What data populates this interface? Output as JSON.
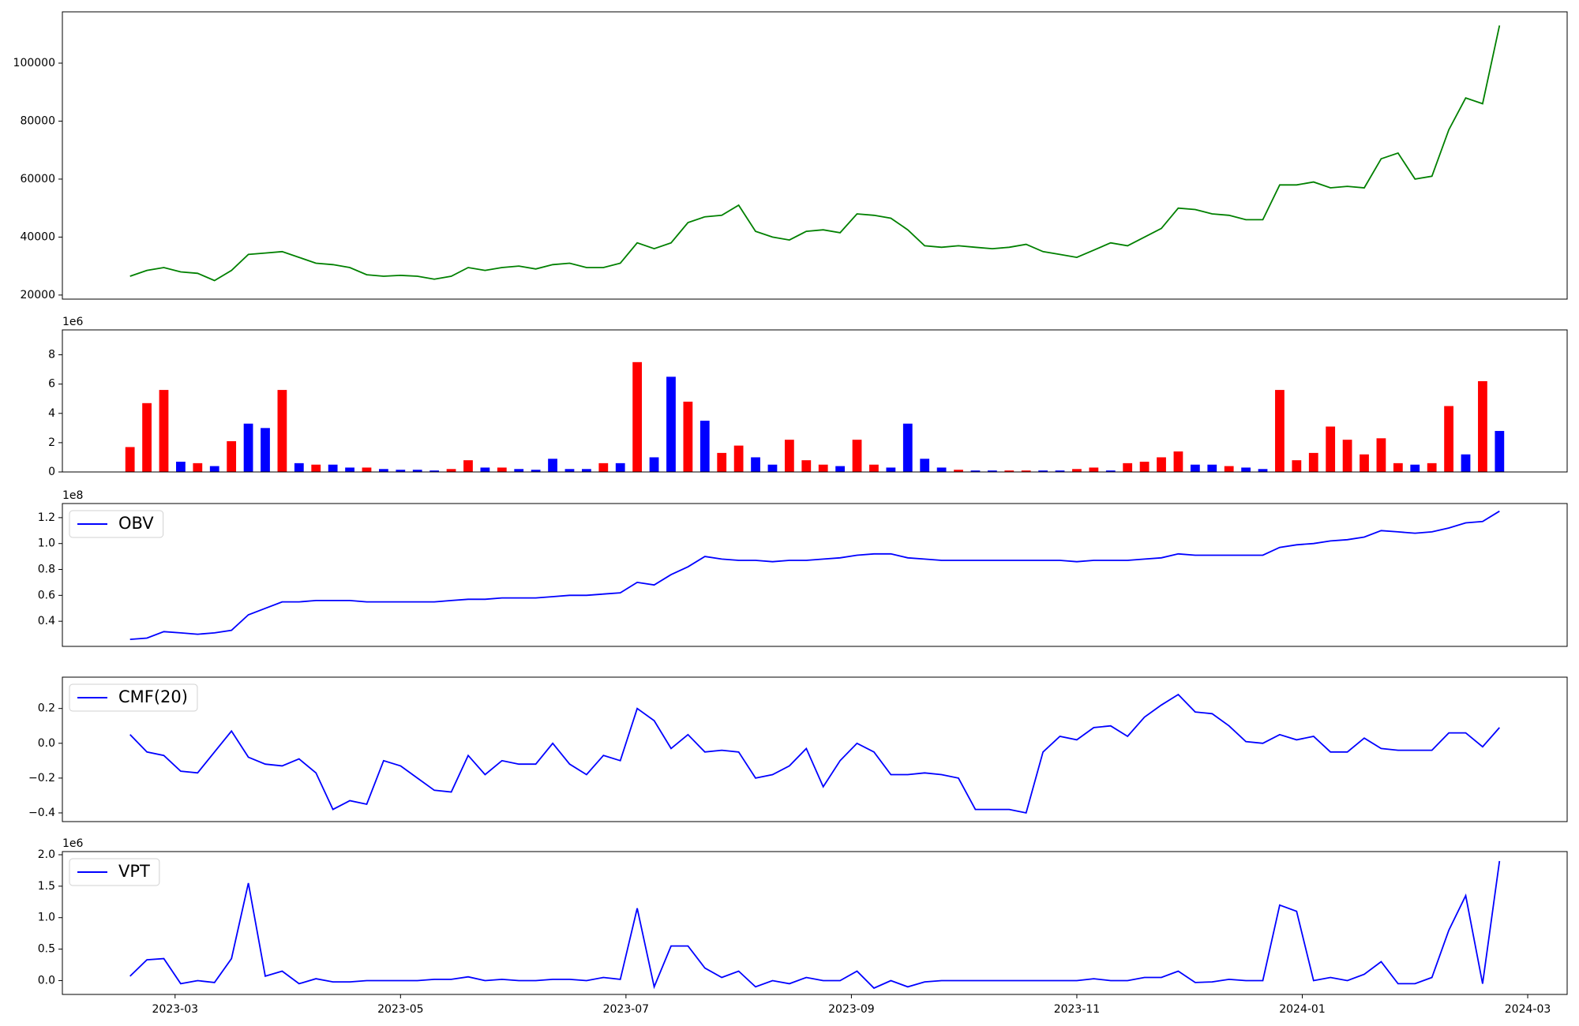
{
  "chart_data": [
    {
      "type": "line",
      "x": [
        2.6,
        2.75,
        2.9,
        3.05,
        3.2,
        3.35,
        3.5,
        3.65,
        3.8,
        3.95,
        4.1,
        4.25,
        4.4,
        4.55,
        4.7,
        4.85,
        5,
        5.15,
        5.3,
        5.45,
        5.6,
        5.75,
        5.9,
        6.05,
        6.2,
        6.35,
        6.5,
        6.65,
        6.8,
        6.95,
        7.1,
        7.25,
        7.4,
        7.55,
        7.7,
        7.85,
        8,
        8.15,
        8.3,
        8.45,
        8.6,
        8.75,
        8.9,
        9.05,
        9.2,
        9.35,
        9.5,
        9.65,
        9.8,
        9.95,
        10.1,
        10.25,
        10.4,
        10.55,
        10.7,
        10.85,
        11,
        11.15,
        11.3,
        11.45,
        11.6,
        11.75,
        11.9,
        12.05,
        12.2,
        12.35,
        12.5,
        12.65,
        12.8,
        12.95,
        13.1,
        13.25,
        13.4,
        13.55,
        13.7,
        13.85,
        14,
        14.15,
        14.3,
        14.45,
        14.6,
        14.75
      ],
      "series": [
        {
          "color": "#008000",
          "values": [
            26500,
            28500,
            29500,
            28000,
            27500,
            25000,
            28500,
            34000,
            34500,
            35000,
            33000,
            31000,
            30500,
            29500,
            27000,
            26500,
            26800,
            26500,
            25500,
            26500,
            29500,
            28500,
            29500,
            30000,
            29000,
            30500,
            31000,
            29500,
            29500,
            31000,
            38000,
            36000,
            38000,
            45000,
            47000,
            47500,
            51000,
            42000,
            40000,
            39000,
            42000,
            42500,
            41500,
            48000,
            47500,
            46500,
            42500,
            37000,
            36500,
            37000,
            36500,
            36000,
            36500,
            37500,
            35000,
            34000,
            33000,
            35500,
            38000,
            37000,
            40000,
            43000,
            50000,
            49500,
            48000,
            47500,
            46000,
            46000,
            58000,
            58000,
            59000,
            57000,
            57500,
            57000,
            67000,
            69000,
            60000,
            61000,
            77000,
            88000,
            86000,
            113000
          ]
        }
      ],
      "xlim": [
        2,
        15.35
      ],
      "ylim": [
        18600,
        117700
      ],
      "yticks": [
        20000,
        40000,
        60000,
        80000,
        100000
      ]
    },
    {
      "type": "bar",
      "offset_text": "1e6",
      "x": [
        2.6,
        2.75,
        2.9,
        3.05,
        3.2,
        3.35,
        3.5,
        3.65,
        3.8,
        3.95,
        4.1,
        4.25,
        4.4,
        4.55,
        4.7,
        4.85,
        5,
        5.15,
        5.3,
        5.45,
        5.6,
        5.75,
        5.9,
        6.05,
        6.2,
        6.35,
        6.5,
        6.65,
        6.8,
        6.95,
        7.1,
        7.25,
        7.4,
        7.55,
        7.7,
        7.85,
        8,
        8.15,
        8.3,
        8.45,
        8.6,
        8.75,
        8.9,
        9.05,
        9.2,
        9.35,
        9.5,
        9.65,
        9.8,
        9.95,
        10.1,
        10.25,
        10.4,
        10.55,
        10.7,
        10.85,
        11,
        11.15,
        11.3,
        11.45,
        11.6,
        11.75,
        11.9,
        12.05,
        12.2,
        12.35,
        12.5,
        12.65,
        12.8,
        12.95,
        13.1,
        13.25,
        13.4,
        13.55,
        13.7,
        13.85,
        14,
        14.15,
        14.3,
        14.45,
        14.6,
        14.75
      ],
      "values": [
        1.7,
        4.7,
        5.6,
        0.7,
        0.6,
        0.4,
        2.1,
        3.3,
        3.0,
        5.6,
        0.6,
        0.5,
        0.5,
        0.3,
        0.3,
        0.2,
        0.15,
        0.15,
        0.1,
        0.2,
        0.8,
        0.3,
        0.3,
        0.2,
        0.15,
        0.9,
        0.2,
        0.2,
        0.6,
        0.6,
        7.5,
        1.0,
        6.5,
        4.8,
        3.5,
        1.3,
        1.8,
        1.0,
        0.5,
        2.2,
        0.8,
        0.5,
        0.4,
        2.2,
        0.5,
        0.3,
        3.3,
        0.9,
        0.3,
        0.15,
        0.1,
        0.1,
        0.1,
        0.1,
        0.1,
        0.1,
        0.2,
        0.3,
        0.1,
        0.6,
        0.7,
        1.0,
        1.4,
        0.5,
        0.5,
        0.4,
        0.3,
        0.2,
        5.6,
        0.8,
        1.3,
        3.1,
        2.2,
        1.2,
        2.3,
        0.6,
        0.5,
        0.6,
        4.5,
        1.2,
        6.2,
        2.8
      ],
      "colors": [
        "#ff0000",
        "#ff0000",
        "#ff0000",
        "#0000ff",
        "#ff0000",
        "#0000ff",
        "#ff0000",
        "#0000ff",
        "#0000ff",
        "#ff0000",
        "#0000ff",
        "#ff0000",
        "#0000ff",
        "#0000ff",
        "#ff0000",
        "#0000ff",
        "#0000ff",
        "#0000ff",
        "#0000ff",
        "#ff0000",
        "#ff0000",
        "#0000ff",
        "#ff0000",
        "#0000ff",
        "#0000ff",
        "#0000ff",
        "#0000ff",
        "#0000ff",
        "#ff0000",
        "#0000ff",
        "#ff0000",
        "#0000ff",
        "#0000ff",
        "#ff0000",
        "#0000ff",
        "#ff0000",
        "#ff0000",
        "#0000ff",
        "#0000ff",
        "#ff0000",
        "#ff0000",
        "#ff0000",
        "#0000ff",
        "#ff0000",
        "#ff0000",
        "#0000ff",
        "#0000ff",
        "#0000ff",
        "#0000ff",
        "#ff0000",
        "#0000ff",
        "#0000ff",
        "#ff0000",
        "#ff0000",
        "#0000ff",
        "#0000ff",
        "#ff0000",
        "#ff0000",
        "#0000ff",
        "#ff0000",
        "#ff0000",
        "#ff0000",
        "#ff0000",
        "#0000ff",
        "#0000ff",
        "#ff0000",
        "#0000ff",
        "#0000ff",
        "#ff0000",
        "#ff0000",
        "#ff0000",
        "#ff0000",
        "#ff0000",
        "#ff0000",
        "#ff0000",
        "#ff0000",
        "#0000ff",
        "#ff0000",
        "#ff0000",
        "#0000ff",
        "#ff0000",
        "#0000ff"
      ],
      "xlim": [
        2,
        15.35
      ],
      "ylim": [
        0,
        9.7
      ],
      "yticks": [
        0,
        2,
        4,
        6,
        8
      ]
    },
    {
      "type": "line",
      "offset_text": "1e8",
      "legend": "upper left",
      "x": [
        2.6,
        2.75,
        2.9,
        3.05,
        3.2,
        3.35,
        3.5,
        3.65,
        3.8,
        3.95,
        4.1,
        4.25,
        4.4,
        4.55,
        4.7,
        4.85,
        5,
        5.15,
        5.3,
        5.45,
        5.6,
        5.75,
        5.9,
        6.05,
        6.2,
        6.35,
        6.5,
        6.65,
        6.8,
        6.95,
        7.1,
        7.25,
        7.4,
        7.55,
        7.7,
        7.85,
        8,
        8.15,
        8.3,
        8.45,
        8.6,
        8.75,
        8.9,
        9.05,
        9.2,
        9.35,
        9.5,
        9.65,
        9.8,
        9.95,
        10.1,
        10.25,
        10.4,
        10.55,
        10.7,
        10.85,
        11,
        11.15,
        11.3,
        11.45,
        11.6,
        11.75,
        11.9,
        12.05,
        12.2,
        12.35,
        12.5,
        12.65,
        12.8,
        12.95,
        13.1,
        13.25,
        13.4,
        13.55,
        13.7,
        13.85,
        14,
        14.15,
        14.3,
        14.45,
        14.6,
        14.75
      ],
      "series": [
        {
          "name": "OBV",
          "color": "#0000ff",
          "values": [
            0.26,
            0.27,
            0.32,
            0.31,
            0.3,
            0.31,
            0.33,
            0.45,
            0.5,
            0.55,
            0.55,
            0.56,
            0.56,
            0.56,
            0.55,
            0.55,
            0.55,
            0.55,
            0.55,
            0.56,
            0.57,
            0.57,
            0.58,
            0.58,
            0.58,
            0.59,
            0.6,
            0.6,
            0.61,
            0.62,
            0.7,
            0.68,
            0.76,
            0.82,
            0.9,
            0.88,
            0.87,
            0.87,
            0.86,
            0.87,
            0.87,
            0.88,
            0.89,
            0.91,
            0.92,
            0.92,
            0.89,
            0.88,
            0.87,
            0.87,
            0.87,
            0.87,
            0.87,
            0.87,
            0.87,
            0.87,
            0.86,
            0.87,
            0.87,
            0.87,
            0.88,
            0.89,
            0.92,
            0.91,
            0.91,
            0.91,
            0.91,
            0.91,
            0.97,
            0.99,
            1.0,
            1.02,
            1.03,
            1.05,
            1.1,
            1.09,
            1.08,
            1.09,
            1.12,
            1.16,
            1.17,
            1.25
          ]
        }
      ],
      "xlim": [
        2,
        15.35
      ],
      "ylim": [
        0.206,
        1.309
      ],
      "yticks": [
        0.4,
        0.6,
        0.8,
        {
          "value": 1,
          "label": "1.0"
        },
        1.2
      ]
    },
    {
      "type": "line",
      "legend": "upper left",
      "x": [
        2.6,
        2.75,
        2.9,
        3.05,
        3.2,
        3.35,
        3.5,
        3.65,
        3.8,
        3.95,
        4.1,
        4.25,
        4.4,
        4.55,
        4.7,
        4.85,
        5,
        5.15,
        5.3,
        5.45,
        5.6,
        5.75,
        5.9,
        6.05,
        6.2,
        6.35,
        6.5,
        6.65,
        6.8,
        6.95,
        7.1,
        7.25,
        7.4,
        7.55,
        7.7,
        7.85,
        8,
        8.15,
        8.3,
        8.45,
        8.6,
        8.75,
        8.9,
        9.05,
        9.2,
        9.35,
        9.5,
        9.65,
        9.8,
        9.95,
        10.1,
        10.25,
        10.4,
        10.55,
        10.7,
        10.85,
        11,
        11.15,
        11.3,
        11.45,
        11.6,
        11.75,
        11.9,
        12.05,
        12.2,
        12.35,
        12.5,
        12.65,
        12.8,
        12.95,
        13.1,
        13.25,
        13.4,
        13.55,
        13.7,
        13.85,
        14,
        14.15,
        14.3,
        14.45,
        14.6,
        14.75
      ],
      "series": [
        {
          "name": "CMF(20)",
          "color": "#0000ff",
          "values": [
            0.05,
            -0.05,
            -0.07,
            -0.16,
            -0.17,
            -0.05,
            0.07,
            -0.08,
            -0.12,
            -0.13,
            -0.09,
            -0.17,
            -0.38,
            -0.33,
            -0.35,
            -0.1,
            -0.13,
            -0.2,
            -0.27,
            -0.28,
            -0.07,
            -0.18,
            -0.1,
            -0.12,
            -0.12,
            0.0,
            -0.12,
            -0.18,
            -0.07,
            -0.1,
            0.2,
            0.13,
            -0.03,
            0.05,
            -0.05,
            -0.04,
            -0.05,
            -0.2,
            -0.18,
            -0.13,
            -0.03,
            -0.25,
            -0.1,
            0.0,
            -0.05,
            -0.18,
            -0.18,
            -0.17,
            -0.18,
            -0.2,
            -0.38,
            -0.38,
            -0.38,
            -0.4,
            -0.05,
            0.04,
            0.02,
            0.09,
            0.1,
            0.04,
            0.15,
            0.22,
            0.28,
            0.18,
            0.17,
            0.1,
            0.01,
            0.0,
            0.05,
            0.02,
            0.04,
            -0.05,
            -0.05,
            0.03,
            -0.03,
            -0.04,
            -0.04,
            -0.04,
            0.06,
            0.06,
            -0.02,
            0.09
          ]
        }
      ],
      "xlim": [
        2,
        15.35
      ],
      "ylim": [
        -0.45,
        0.38
      ],
      "yticks": [
        {
          "value": -0.4,
          "label": "−0.4"
        },
        {
          "value": -0.2,
          "label": "−0.2"
        },
        {
          "value": 0,
          "label": "0.0"
        },
        0.2
      ]
    },
    {
      "type": "line",
      "offset_text": "1e6",
      "legend": "upper left",
      "x": [
        2.6,
        2.75,
        2.9,
        3.05,
        3.2,
        3.35,
        3.5,
        3.65,
        3.8,
        3.95,
        4.1,
        4.25,
        4.4,
        4.55,
        4.7,
        4.85,
        5,
        5.15,
        5.3,
        5.45,
        5.6,
        5.75,
        5.9,
        6.05,
        6.2,
        6.35,
        6.5,
        6.65,
        6.8,
        6.95,
        7.1,
        7.25,
        7.4,
        7.55,
        7.7,
        7.85,
        8,
        8.15,
        8.3,
        8.45,
        8.6,
        8.75,
        8.9,
        9.05,
        9.2,
        9.35,
        9.5,
        9.65,
        9.8,
        9.95,
        10.1,
        10.25,
        10.4,
        10.55,
        10.7,
        10.85,
        11,
        11.15,
        11.3,
        11.45,
        11.6,
        11.75,
        11.9,
        12.05,
        12.2,
        12.35,
        12.5,
        12.65,
        12.8,
        12.95,
        13.1,
        13.25,
        13.4,
        13.55,
        13.7,
        13.85,
        14,
        14.15,
        14.3,
        14.45,
        14.6,
        14.75
      ],
      "series": [
        {
          "name": "VPT",
          "color": "#0000ff",
          "values": [
            0.07,
            0.33,
            0.35,
            -0.05,
            0.0,
            -0.03,
            0.35,
            1.55,
            0.07,
            0.15,
            -0.05,
            0.03,
            -0.02,
            -0.02,
            0.0,
            0.0,
            0.0,
            0.0,
            0.02,
            0.02,
            0.06,
            0.0,
            0.02,
            0.0,
            0.0,
            0.02,
            0.02,
            0.0,
            0.05,
            0.02,
            1.15,
            -0.1,
            0.55,
            0.55,
            0.2,
            0.05,
            0.15,
            -0.1,
            0.0,
            -0.05,
            0.05,
            0.0,
            0.0,
            0.15,
            -0.12,
            0.0,
            -0.1,
            -0.02,
            0.0,
            0.0,
            0.0,
            0.0,
            0.0,
            0.0,
            0.0,
            0.0,
            0.0,
            0.03,
            0.0,
            0.0,
            0.05,
            0.05,
            0.15,
            -0.03,
            -0.02,
            0.02,
            0.0,
            0.0,
            1.2,
            1.1,
            0.0,
            0.05,
            0.0,
            0.1,
            0.3,
            -0.05,
            -0.05,
            0.05,
            0.8,
            1.35,
            -0.05,
            1.9
          ]
        }
      ],
      "xlim": [
        2,
        15.35
      ],
      "ylim": [
        -0.22,
        2.05
      ],
      "yticks": [
        {
          "value": 0,
          "label": "0.0"
        },
        0.5,
        {
          "value": 1,
          "label": "1.0"
        },
        1.5,
        {
          "value": 2,
          "label": "2.0"
        }
      ],
      "xticks": [
        {
          "value": 3,
          "label": "2023-03"
        },
        {
          "value": 5,
          "label": "2023-05"
        },
        {
          "value": 7,
          "label": "2023-07"
        },
        {
          "value": 9,
          "label": "2023-09"
        },
        {
          "value": 11,
          "label": "2023-11"
        },
        {
          "value": 13,
          "label": "2024-01"
        },
        {
          "value": 15,
          "label": "2024-03"
        }
      ]
    }
  ]
}
